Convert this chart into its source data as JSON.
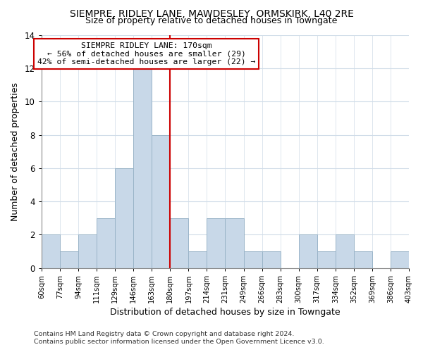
{
  "title": "SIEMPRE, RIDLEY LANE, MAWDESLEY, ORMSKIRK, L40 2RE",
  "subtitle": "Size of property relative to detached houses in Towngate",
  "xlabel": "Distribution of detached houses by size in Towngate",
  "ylabel": "Number of detached properties",
  "bar_color": "#c8d8e8",
  "bar_edgecolor": "#9ab4c8",
  "bins": [
    "60sqm",
    "77sqm",
    "94sqm",
    "111sqm",
    "129sqm",
    "146sqm",
    "163sqm",
    "180sqm",
    "197sqm",
    "214sqm",
    "231sqm",
    "249sqm",
    "266sqm",
    "283sqm",
    "300sqm",
    "317sqm",
    "334sqm",
    "352sqm",
    "369sqm",
    "386sqm",
    "403sqm"
  ],
  "counts": [
    2,
    1,
    2,
    3,
    6,
    12,
    8,
    3,
    1,
    3,
    3,
    1,
    1,
    0,
    2,
    1,
    2,
    1,
    0,
    1
  ],
  "ylim": [
    0,
    14
  ],
  "yticks": [
    0,
    2,
    4,
    6,
    8,
    10,
    12,
    14
  ],
  "property_line_color": "#cc0000",
  "annotation_title": "SIEMPRE RIDLEY LANE: 170sqm",
  "annotation_line1": "← 56% of detached houses are smaller (29)",
  "annotation_line2": "42% of semi-detached houses are larger (22) →",
  "annotation_box_color": "#ffffff",
  "annotation_box_edgecolor": "#cc0000",
  "footer1": "Contains HM Land Registry data © Crown copyright and database right 2024.",
  "footer2": "Contains public sector information licensed under the Open Government Licence v3.0.",
  "bg_color": "#ffffff",
  "grid_color": "#d0dce8"
}
